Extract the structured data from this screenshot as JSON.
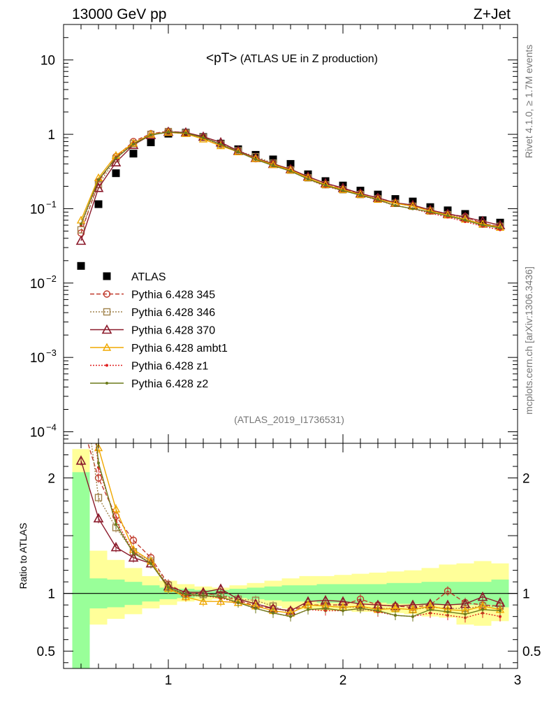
{
  "header": {
    "energy_label": "13000 GeV pp",
    "process_label": "Z+Jet"
  },
  "side_text": {
    "rivet": "Rivet 4.1.0, ≥ 1.7M events",
    "mcplots": "mcplots.cern.ch [arXiv:1306.3436]"
  },
  "chart_data": [
    {
      "type": "line",
      "panel": "main",
      "title_main": "<pT>",
      "title_sub": " (ATLAS UE in Z production)",
      "analysis_id": "(ATLAS_2019_I1736531)",
      "yscale": "log",
      "xlim": [
        0.4,
        3.0
      ],
      "ylim": [
        7e-05,
        30
      ],
      "y_ticks": [
        {
          "value": 10,
          "label": "10"
        },
        {
          "value": 1,
          "label": "1"
        },
        {
          "value": 0.1,
          "label": "10",
          "exp": "−1"
        },
        {
          "value": 0.01,
          "label": "10",
          "exp": "−2"
        },
        {
          "value": 0.001,
          "label": "10",
          "exp": "−3"
        },
        {
          "value": 0.0001,
          "label": "10",
          "exp": "−4"
        }
      ],
      "x": [
        0.5,
        0.6,
        0.7,
        0.8,
        0.9,
        1.0,
        1.1,
        1.2,
        1.3,
        1.4,
        1.5,
        1.6,
        1.7,
        1.8,
        1.9,
        2.0,
        2.1,
        2.2,
        2.3,
        2.4,
        2.5,
        2.6,
        2.7,
        2.8,
        2.9
      ],
      "legend": {
        "placement": "lower-left"
      },
      "series": [
        {
          "name": "ATLAS",
          "color": "#000000",
          "marker": "square",
          "line": "none",
          "values": [
            0.017,
            0.115,
            0.3,
            0.55,
            0.78,
            1.02,
            1.05,
            0.92,
            0.75,
            0.63,
            0.53,
            0.46,
            0.4,
            0.29,
            0.235,
            0.205,
            0.175,
            0.155,
            0.135,
            0.125,
            0.105,
            0.095,
            0.085,
            0.07,
            0.065
          ]
        },
        {
          "name": "Pythia 6.428 345",
          "color": "#c0392b",
          "marker": "circle",
          "line": "dashed",
          "values": [
            0.047,
            0.23,
            0.5,
            0.8,
            1.02,
            1.1,
            1.05,
            0.92,
            0.73,
            0.59,
            0.47,
            0.4,
            0.34,
            0.26,
            0.21,
            0.185,
            0.16,
            0.14,
            0.12,
            0.11,
            0.095,
            0.085,
            0.078,
            0.063,
            0.058
          ]
        },
        {
          "name": "Pythia 6.428 346",
          "color": "#a0824b",
          "marker": "open-square",
          "line": "dotted",
          "values": [
            0.052,
            0.21,
            0.47,
            0.75,
            1.0,
            1.09,
            1.04,
            0.91,
            0.74,
            0.6,
            0.5,
            0.41,
            0.33,
            0.26,
            0.21,
            0.18,
            0.155,
            0.135,
            0.118,
            0.108,
            0.093,
            0.083,
            0.074,
            0.062,
            0.058
          ]
        },
        {
          "name": "Pythia 6.428 370",
          "color": "#8b1a2b",
          "marker": "triangle",
          "line": "solid",
          "values": [
            0.037,
            0.19,
            0.42,
            0.72,
            0.98,
            1.08,
            1.06,
            0.93,
            0.78,
            0.6,
            0.48,
            0.4,
            0.34,
            0.27,
            0.22,
            0.19,
            0.16,
            0.14,
            0.12,
            0.112,
            0.096,
            0.085,
            0.077,
            0.068,
            0.06
          ]
        },
        {
          "name": "Pythia 6.428 ambt1",
          "color": "#f0a800",
          "marker": "open-triangle",
          "line": "solid",
          "values": [
            0.07,
            0.26,
            0.52,
            0.76,
            1.0,
            1.06,
            1.02,
            0.86,
            0.7,
            0.58,
            0.47,
            0.39,
            0.33,
            0.26,
            0.21,
            0.18,
            0.155,
            0.133,
            0.118,
            0.108,
            0.093,
            0.082,
            0.072,
            0.062,
            0.056
          ]
        },
        {
          "name": "Pythia 6.428 z1",
          "color": "#e02020",
          "marker": "dot",
          "line": "dotted",
          "values": [
            0.06,
            0.24,
            0.49,
            0.75,
            0.98,
            1.07,
            1.03,
            0.9,
            0.72,
            0.58,
            0.46,
            0.38,
            0.32,
            0.25,
            0.2,
            0.175,
            0.152,
            0.13,
            0.11,
            0.1,
            0.087,
            0.077,
            0.067,
            0.058,
            0.052
          ]
        },
        {
          "name": "Pythia 6.428 z2",
          "color": "#6b7a1a",
          "marker": "dot",
          "line": "solid",
          "values": [
            0.062,
            0.245,
            0.48,
            0.74,
            0.98,
            1.07,
            1.04,
            0.9,
            0.73,
            0.58,
            0.46,
            0.38,
            0.32,
            0.25,
            0.205,
            0.175,
            0.152,
            0.132,
            0.11,
            0.1,
            0.09,
            0.08,
            0.07,
            0.06,
            0.055
          ]
        }
      ]
    },
    {
      "type": "line",
      "panel": "ratio",
      "ylabel": "Ratio to ATLAS",
      "xlim": [
        0.4,
        3.0
      ],
      "ylim": [
        0.35,
        2.3
      ],
      "y_ticks": [
        {
          "value": 2,
          "label": "2"
        },
        {
          "value": 1,
          "label": "1"
        },
        {
          "value": 0.5,
          "label": "0.5"
        }
      ],
      "x_ticks": [
        {
          "value": 1,
          "label": "1"
        },
        {
          "value": 2,
          "label": "2"
        },
        {
          "value": 3,
          "label": "3"
        }
      ],
      "reference_line": 1,
      "band_bins": [
        0.45,
        0.55,
        0.65,
        0.75,
        0.85,
        0.95,
        1.05,
        1.15,
        1.25,
        1.35,
        1.45,
        1.55,
        1.65,
        1.75,
        1.85,
        1.95,
        2.05,
        2.15,
        2.25,
        2.35,
        2.45,
        2.55,
        2.65,
        2.75,
        2.85,
        2.95
      ],
      "stat_band": {
        "color": "#99ff99",
        "lower": [
          0.3,
          0.87,
          0.88,
          0.9,
          0.93,
          0.95,
          0.96,
          0.97,
          0.97,
          0.96,
          0.95,
          0.94,
          0.93,
          0.93,
          0.92,
          0.92,
          0.92,
          0.92,
          0.91,
          0.91,
          0.9,
          0.9,
          0.9,
          0.9,
          0.88
        ],
        "upper": [
          2.05,
          1.13,
          1.12,
          1.1,
          1.07,
          1.05,
          1.04,
          1.03,
          1.03,
          1.04,
          1.05,
          1.06,
          1.07,
          1.07,
          1.08,
          1.08,
          1.08,
          1.08,
          1.09,
          1.09,
          1.1,
          1.1,
          1.1,
          1.1,
          1.12
        ]
      },
      "syst_band": {
        "color": "#ffff99",
        "lower": [
          0.3,
          0.73,
          0.78,
          0.82,
          0.87,
          0.9,
          0.93,
          0.94,
          0.95,
          0.93,
          0.91,
          0.89,
          0.87,
          0.86,
          0.85,
          0.85,
          0.84,
          0.84,
          0.83,
          0.82,
          0.8,
          0.79,
          0.73,
          0.72,
          0.76
        ],
        "upper": [
          2.25,
          1.37,
          1.29,
          1.22,
          1.15,
          1.11,
          1.08,
          1.06,
          1.05,
          1.07,
          1.09,
          1.11,
          1.13,
          1.15,
          1.15,
          1.16,
          1.17,
          1.18,
          1.19,
          1.2,
          1.22,
          1.25,
          1.26,
          1.28,
          1.26
        ]
      },
      "x": [
        0.5,
        0.6,
        0.7,
        0.8,
        0.9,
        1.0,
        1.1,
        1.2,
        1.3,
        1.4,
        1.5,
        1.6,
        1.7,
        1.8,
        1.9,
        2.0,
        2.1,
        2.2,
        2.3,
        2.4,
        2.5,
        2.6,
        2.7,
        2.8,
        2.9
      ],
      "series": [
        {
          "name": "Pythia 6.428 345",
          "color": "#c0392b",
          "marker": "circle",
          "line": "dashed",
          "values": [
            2.5,
            2.0,
            1.67,
            1.46,
            1.31,
            1.08,
            1.0,
            1.0,
            0.98,
            0.94,
            0.89,
            0.87,
            0.85,
            0.9,
            0.9,
            0.9,
            0.95,
            0.9,
            0.89,
            0.88,
            0.9,
            1.02,
            0.92,
            0.9,
            0.89
          ]
        },
        {
          "name": "Pythia 6.428 346",
          "color": "#a0824b",
          "marker": "open-square",
          "line": "dotted",
          "values": [
            3.0,
            1.83,
            1.57,
            1.36,
            1.28,
            1.07,
            0.99,
            0.99,
            0.99,
            0.95,
            0.94,
            0.89,
            0.83,
            0.9,
            0.89,
            0.88,
            0.88,
            0.87,
            0.87,
            0.86,
            0.88,
            0.87,
            0.87,
            0.89,
            0.89
          ]
        },
        {
          "name": "Pythia 6.428 370",
          "color": "#8b1a2b",
          "marker": "triangle",
          "line": "solid",
          "values": [
            2.15,
            1.65,
            1.4,
            1.31,
            1.26,
            1.06,
            1.01,
            1.01,
            1.04,
            0.95,
            0.91,
            0.87,
            0.85,
            0.93,
            0.94,
            0.93,
            0.91,
            0.9,
            0.89,
            0.9,
            0.91,
            0.9,
            0.91,
            0.97,
            0.92
          ]
        },
        {
          "name": "Pythia 6.428 ambt1",
          "color": "#f0a800",
          "marker": "open-triangle",
          "line": "solid",
          "values": [
            4.1,
            2.26,
            1.73,
            1.38,
            1.28,
            1.04,
            0.97,
            0.93,
            0.93,
            0.92,
            0.89,
            0.85,
            0.83,
            0.9,
            0.89,
            0.88,
            0.89,
            0.86,
            0.87,
            0.86,
            0.89,
            0.86,
            0.85,
            0.89,
            0.86
          ]
        },
        {
          "name": "Pythia 6.428 z1",
          "color": "#e02020",
          "marker": "dot",
          "line": "dotted",
          "values": [
            3.5,
            2.09,
            1.63,
            1.36,
            1.26,
            1.05,
            0.98,
            0.98,
            0.96,
            0.92,
            0.87,
            0.83,
            0.8,
            0.86,
            0.85,
            0.85,
            0.87,
            0.84,
            0.81,
            0.8,
            0.83,
            0.81,
            0.79,
            0.83,
            0.8
          ]
        },
        {
          "name": "Pythia 6.428 z2",
          "color": "#6b7a1a",
          "marker": "dot",
          "line": "solid",
          "values": [
            3.6,
            2.13,
            1.6,
            1.35,
            1.26,
            1.05,
            0.99,
            0.98,
            0.97,
            0.92,
            0.87,
            0.83,
            0.8,
            0.86,
            0.87,
            0.85,
            0.87,
            0.85,
            0.81,
            0.8,
            0.86,
            0.84,
            0.82,
            0.86,
            0.85
          ]
        }
      ]
    }
  ]
}
